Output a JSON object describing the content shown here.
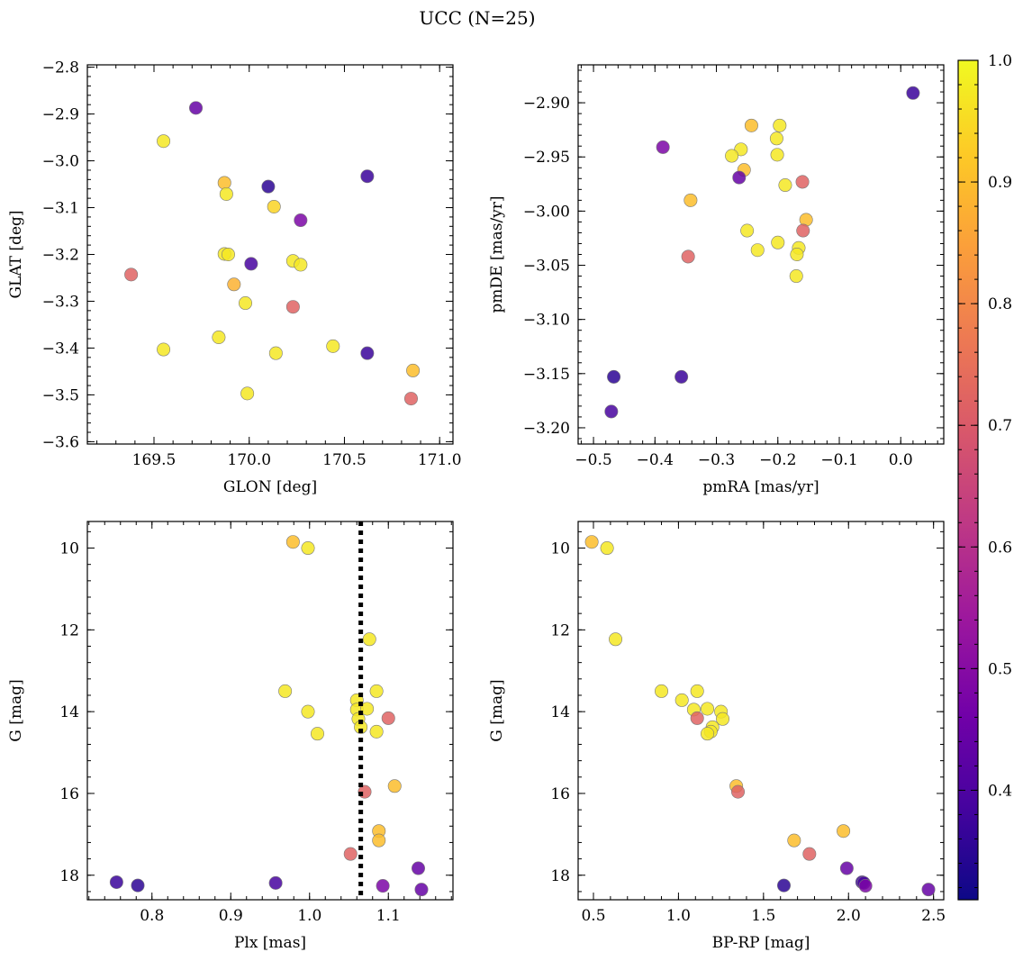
{
  "title": "UCC (N=25)",
  "colormap": {
    "name": "plasma",
    "min": 0.31,
    "max": 1.0,
    "ticks": [
      0.4,
      0.5,
      0.6,
      0.7,
      0.8,
      0.9,
      1.0
    ],
    "tick_labels": [
      "0.4",
      "0.5",
      "0.6",
      "0.7",
      "0.8",
      "0.9",
      "1.0"
    ]
  },
  "chart_data": [
    {
      "type": "scatter",
      "xlabel": "GLON [deg]",
      "ylabel": "GLAT [deg]",
      "xlim": [
        169.15,
        171.07
      ],
      "ylim": [
        -3.605,
        -2.795
      ],
      "x_ticks": [
        169.5,
        170.0,
        170.5,
        171.0
      ],
      "x_tick_labels": [
        "169.5",
        "170.0",
        "170.5",
        "171.0"
      ],
      "y_ticks": [
        -3.6,
        -3.5,
        -3.4,
        -3.3,
        -3.2,
        -3.1,
        -3.0,
        -2.9,
        -2.8
      ],
      "y_tick_labels": [
        "−3.6",
        "−3.5",
        "−3.4",
        "−3.3",
        "−3.2",
        "−3.1",
        "−3.0",
        "−2.9",
        "−2.8"
      ],
      "points": [
        {
          "x": 169.72,
          "y": -2.887,
          "c": 0.44
        },
        {
          "x": 169.55,
          "y": -2.958,
          "c": 0.97
        },
        {
          "x": 169.87,
          "y": -3.047,
          "c": 0.9
        },
        {
          "x": 169.88,
          "y": -3.071,
          "c": 0.97
        },
        {
          "x": 170.1,
          "y": -3.055,
          "c": 0.35
        },
        {
          "x": 170.62,
          "y": -3.033,
          "c": 0.37
        },
        {
          "x": 170.13,
          "y": -3.098,
          "c": 0.94
        },
        {
          "x": 170.27,
          "y": -3.127,
          "c": 0.48
        },
        {
          "x": 169.38,
          "y": -3.243,
          "c": 0.72
        },
        {
          "x": 169.87,
          "y": -3.199,
          "c": 0.97
        },
        {
          "x": 169.89,
          "y": -3.2,
          "c": 0.97
        },
        {
          "x": 170.01,
          "y": -3.22,
          "c": 0.39
        },
        {
          "x": 170.23,
          "y": -3.214,
          "c": 0.97
        },
        {
          "x": 170.27,
          "y": -3.222,
          "c": 0.97
        },
        {
          "x": 169.92,
          "y": -3.264,
          "c": 0.88
        },
        {
          "x": 169.98,
          "y": -3.304,
          "c": 0.97
        },
        {
          "x": 170.23,
          "y": -3.312,
          "c": 0.72
        },
        {
          "x": 169.84,
          "y": -3.377,
          "c": 0.97
        },
        {
          "x": 169.55,
          "y": -3.403,
          "c": 0.97
        },
        {
          "x": 170.14,
          "y": -3.411,
          "c": 0.97
        },
        {
          "x": 170.44,
          "y": -3.396,
          "c": 0.97
        },
        {
          "x": 170.62,
          "y": -3.411,
          "c": 0.37
        },
        {
          "x": 170.86,
          "y": -3.448,
          "c": 0.9
        },
        {
          "x": 169.99,
          "y": -3.497,
          "c": 0.97
        },
        {
          "x": 170.85,
          "y": -3.508,
          "c": 0.72
        }
      ]
    },
    {
      "type": "scatter",
      "xlabel": "pmRA [mas/yr]",
      "ylabel": "pmDE [mas/yr]",
      "xlim": [
        -0.525,
        0.07
      ],
      "ylim": [
        -3.215,
        -2.865
      ],
      "x_ticks": [
        -0.5,
        -0.4,
        -0.3,
        -0.2,
        -0.1,
        0.0
      ],
      "x_tick_labels": [
        "−0.5",
        "−0.4",
        "−0.3",
        "−0.2",
        "−0.1",
        "0.0"
      ],
      "y_ticks": [
        -3.2,
        -3.15,
        -3.1,
        -3.05,
        -3.0,
        -2.95,
        -2.9
      ],
      "y_tick_labels": [
        "−3.20",
        "−3.15",
        "−3.10",
        "−3.05",
        "−3.00",
        "−2.95",
        "−2.90"
      ],
      "points": [
        {
          "x": 0.02,
          "y": -2.891,
          "c": 0.37
        },
        {
          "x": -0.387,
          "y": -2.941,
          "c": 0.48
        },
        {
          "x": -0.243,
          "y": -2.921,
          "c": 0.9
        },
        {
          "x": -0.197,
          "y": -2.921,
          "c": 0.97
        },
        {
          "x": -0.202,
          "y": -2.933,
          "c": 0.97
        },
        {
          "x": -0.26,
          "y": -2.943,
          "c": 0.97
        },
        {
          "x": -0.275,
          "y": -2.949,
          "c": 0.97
        },
        {
          "x": -0.201,
          "y": -2.948,
          "c": 0.97
        },
        {
          "x": -0.255,
          "y": -2.962,
          "c": 0.9
        },
        {
          "x": -0.263,
          "y": -2.969,
          "c": 0.44
        },
        {
          "x": -0.188,
          "y": -2.976,
          "c": 0.97
        },
        {
          "x": -0.16,
          "y": -2.973,
          "c": 0.72
        },
        {
          "x": -0.342,
          "y": -2.99,
          "c": 0.9
        },
        {
          "x": -0.154,
          "y": -3.008,
          "c": 0.9
        },
        {
          "x": -0.159,
          "y": -3.018,
          "c": 0.72
        },
        {
          "x": -0.25,
          "y": -3.018,
          "c": 0.97
        },
        {
          "x": -0.2,
          "y": -3.029,
          "c": 0.97
        },
        {
          "x": -0.166,
          "y": -3.034,
          "c": 0.97
        },
        {
          "x": -0.233,
          "y": -3.036,
          "c": 0.97
        },
        {
          "x": -0.169,
          "y": -3.04,
          "c": 0.97
        },
        {
          "x": -0.346,
          "y": -3.042,
          "c": 0.72
        },
        {
          "x": -0.17,
          "y": -3.06,
          "c": 0.97
        },
        {
          "x": -0.467,
          "y": -3.153,
          "c": 0.35
        },
        {
          "x": -0.357,
          "y": -3.153,
          "c": 0.37
        },
        {
          "x": -0.471,
          "y": -3.185,
          "c": 0.39
        }
      ]
    },
    {
      "type": "scatter",
      "xlabel": "Plx [mas]",
      "ylabel": "G [mag]",
      "xlim": [
        0.718,
        1.182
      ],
      "ylim": [
        18.6,
        9.35
      ],
      "x_ticks": [
        0.8,
        0.9,
        1.0,
        1.1
      ],
      "x_tick_labels": [
        "0.8",
        "0.9",
        "1.0",
        "1.1"
      ],
      "y_ticks": [
        10,
        12,
        14,
        16,
        18
      ],
      "y_tick_labels": [
        "10",
        "12",
        "14",
        "16",
        "18"
      ],
      "vline": 1.065,
      "points": [
        {
          "x": 0.979,
          "y": 9.85,
          "c": 0.9
        },
        {
          "x": 0.998,
          "y": 10.0,
          "c": 0.97
        },
        {
          "x": 1.076,
          "y": 12.23,
          "c": 0.97
        },
        {
          "x": 0.969,
          "y": 13.5,
          "c": 0.97
        },
        {
          "x": 1.085,
          "y": 13.5,
          "c": 0.97
        },
        {
          "x": 1.06,
          "y": 13.72,
          "c": 0.97
        },
        {
          "x": 1.06,
          "y": 13.95,
          "c": 0.97
        },
        {
          "x": 1.073,
          "y": 13.93,
          "c": 0.97
        },
        {
          "x": 0.998,
          "y": 14.0,
          "c": 0.97
        },
        {
          "x": 1.1,
          "y": 14.16,
          "c": 0.72
        },
        {
          "x": 1.062,
          "y": 14.18,
          "c": 0.97
        },
        {
          "x": 1.065,
          "y": 14.38,
          "c": 0.97
        },
        {
          "x": 1.085,
          "y": 14.49,
          "c": 0.97
        },
        {
          "x": 1.01,
          "y": 14.54,
          "c": 0.97
        },
        {
          "x": 1.108,
          "y": 15.82,
          "c": 0.9
        },
        {
          "x": 1.07,
          "y": 15.96,
          "c": 0.72
        },
        {
          "x": 1.088,
          "y": 16.92,
          "c": 0.9
        },
        {
          "x": 1.088,
          "y": 17.15,
          "c": 0.9
        },
        {
          "x": 1.052,
          "y": 17.48,
          "c": 0.72
        },
        {
          "x": 1.138,
          "y": 17.83,
          "c": 0.44
        },
        {
          "x": 0.755,
          "y": 18.17,
          "c": 0.37
        },
        {
          "x": 0.957,
          "y": 18.19,
          "c": 0.39
        },
        {
          "x": 0.782,
          "y": 18.25,
          "c": 0.35
        },
        {
          "x": 1.093,
          "y": 18.26,
          "c": 0.48
        },
        {
          "x": 1.142,
          "y": 18.35,
          "c": 0.44
        }
      ]
    },
    {
      "type": "scatter",
      "xlabel": "BP-RP [mag]",
      "ylabel": "G [mag]",
      "xlim": [
        0.41,
        2.56
      ],
      "ylim": [
        18.6,
        9.35
      ],
      "x_ticks": [
        0.5,
        1.0,
        1.5,
        2.0,
        2.5
      ],
      "x_tick_labels": [
        "0.5",
        "1.0",
        "1.5",
        "2.0",
        "2.5"
      ],
      "y_ticks": [
        10,
        12,
        14,
        16,
        18
      ],
      "y_tick_labels": [
        "10",
        "12",
        "14",
        "16",
        "18"
      ],
      "points": [
        {
          "x": 0.49,
          "y": 9.85,
          "c": 0.9
        },
        {
          "x": 0.58,
          "y": 10.0,
          "c": 0.97
        },
        {
          "x": 0.63,
          "y": 12.23,
          "c": 0.97
        },
        {
          "x": 0.9,
          "y": 13.5,
          "c": 0.97
        },
        {
          "x": 1.11,
          "y": 13.5,
          "c": 0.97
        },
        {
          "x": 1.02,
          "y": 13.72,
          "c": 0.97
        },
        {
          "x": 1.09,
          "y": 13.95,
          "c": 0.97
        },
        {
          "x": 1.17,
          "y": 13.93,
          "c": 0.97
        },
        {
          "x": 1.25,
          "y": 14.0,
          "c": 0.97
        },
        {
          "x": 1.11,
          "y": 14.16,
          "c": 0.72
        },
        {
          "x": 1.26,
          "y": 14.18,
          "c": 0.97
        },
        {
          "x": 1.2,
          "y": 14.38,
          "c": 0.97
        },
        {
          "x": 1.19,
          "y": 14.49,
          "c": 0.97
        },
        {
          "x": 1.17,
          "y": 14.54,
          "c": 0.97
        },
        {
          "x": 1.34,
          "y": 15.82,
          "c": 0.9
        },
        {
          "x": 1.35,
          "y": 15.96,
          "c": 0.72
        },
        {
          "x": 1.97,
          "y": 16.92,
          "c": 0.9
        },
        {
          "x": 1.68,
          "y": 17.15,
          "c": 0.9
        },
        {
          "x": 1.77,
          "y": 17.48,
          "c": 0.72
        },
        {
          "x": 1.99,
          "y": 17.83,
          "c": 0.44
        },
        {
          "x": 2.08,
          "y": 18.17,
          "c": 0.37
        },
        {
          "x": 2.09,
          "y": 18.19,
          "c": 0.39
        },
        {
          "x": 1.62,
          "y": 18.25,
          "c": 0.35
        },
        {
          "x": 2.1,
          "y": 18.26,
          "c": 0.48
        },
        {
          "x": 2.47,
          "y": 18.35,
          "c": 0.44
        }
      ]
    }
  ]
}
